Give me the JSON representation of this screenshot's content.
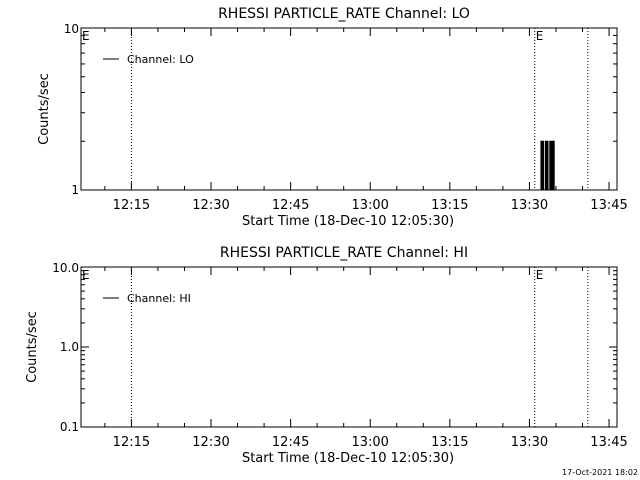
{
  "footer": {
    "timestamp": "17-Oct-2021 18:02"
  },
  "chart_data": [
    {
      "type": "line",
      "title": "RHESSI PARTICLE_RATE Channel: LO",
      "xlabel": "Start Time (18-Dec-10 12:05:30)",
      "ylabel": "Counts/sec",
      "y_scale": "log",
      "xlim": [
        "12:05:30",
        "13:46:30"
      ],
      "ylim": [
        1,
        10
      ],
      "x_ticks": [
        "12:15",
        "12:30",
        "12:45",
        "13:00",
        "13:15",
        "13:30",
        "13:45"
      ],
      "y_ticks": [
        "1",
        "10"
      ],
      "legend": {
        "placement": "top-left",
        "entries": [
          "Channel: LO"
        ]
      },
      "event_marker": "E",
      "event_lines": [
        "12:15",
        "13:31",
        "13:41"
      ],
      "event_labels": [
        {
          "x": "12:05:30",
          "label": "E"
        },
        {
          "x": "13:31",
          "label": "E"
        }
      ],
      "series": [
        {
          "name": "Channel: LO",
          "x": [
            "13:32:00",
            "13:32:10",
            "13:32:20",
            "13:32:30",
            "13:32:40",
            "13:32:50",
            "13:33:00",
            "13:33:10",
            "13:33:20",
            "13:33:30",
            "13:33:40",
            "13:33:50",
            "13:34:00",
            "13:34:10",
            "13:34:20",
            "13:34:30",
            "13:34:40"
          ],
          "values": [
            1,
            2,
            1,
            2,
            1,
            1,
            2,
            1,
            2,
            1,
            1,
            2,
            1,
            2,
            1,
            2,
            1
          ]
        }
      ]
    },
    {
      "type": "line",
      "title": "RHESSI PARTICLE_RATE Channel: HI",
      "xlabel": "Start Time (18-Dec-10 12:05:30)",
      "ylabel": "Counts/sec",
      "y_scale": "log",
      "xlim": [
        "12:05:30",
        "13:46:30"
      ],
      "ylim": [
        0.1,
        10
      ],
      "x_ticks": [
        "12:15",
        "12:30",
        "12:45",
        "13:00",
        "13:15",
        "13:30",
        "13:45"
      ],
      "y_ticks": [
        "0.1",
        "1.0",
        "10.0"
      ],
      "legend": {
        "placement": "top-left",
        "entries": [
          "Channel: HI"
        ]
      },
      "event_marker": "E",
      "event_lines": [
        "12:15",
        "13:31",
        "13:41"
      ],
      "event_labels": [
        {
          "x": "12:05:30",
          "label": "E"
        },
        {
          "x": "13:31",
          "label": "E"
        }
      ],
      "series": [
        {
          "name": "Channel: HI",
          "x": [],
          "values": []
        }
      ]
    }
  ]
}
